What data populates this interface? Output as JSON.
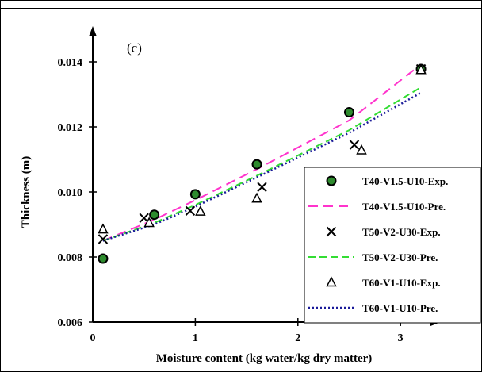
{
  "chart_data": {
    "type": "scatter",
    "panel_label": "(c)",
    "xlabel": "Moisture content (kg water/kg dry matter)",
    "ylabel": "Thickness (m)",
    "xlim": [
      0,
      3.3
    ],
    "ylim": [
      0.006,
      0.015
    ],
    "x_ticks": [
      {
        "value": 0,
        "label": "0"
      },
      {
        "value": 1,
        "label": "1"
      },
      {
        "value": 2,
        "label": "2"
      },
      {
        "value": 3,
        "label": "3"
      }
    ],
    "y_ticks": [
      {
        "value": 0.006,
        "label": "0.006"
      },
      {
        "value": 0.008,
        "label": "0.008"
      },
      {
        "value": 0.01,
        "label": "0.010"
      },
      {
        "value": 0.012,
        "label": "0.012"
      },
      {
        "value": 0.014,
        "label": "0.014"
      }
    ],
    "grid": false,
    "legend_position": "bottom-right",
    "series": [
      {
        "name": "T40-V1.5-U10-Exp.",
        "kind": "marker",
        "marker": "circle-filled",
        "color": "#2e8b2e",
        "edge": "#000000",
        "x": [
          0.1,
          0.6,
          1.0,
          1.6,
          2.5,
          3.2
        ],
        "y": [
          0.00795,
          0.0093,
          0.00993,
          0.01085,
          0.01245,
          0.01378
        ]
      },
      {
        "name": "T40-V1.5-U10-Pre.",
        "kind": "line",
        "dash": "long",
        "color": "#ff33cc",
        "x": [
          0.1,
          0.6,
          1.0,
          1.6,
          2.5,
          3.2
        ],
        "y": [
          0.0085,
          0.00915,
          0.00975,
          0.0107,
          0.0122,
          0.01392
        ]
      },
      {
        "name": "T50-V2-U30-Exp.",
        "kind": "marker",
        "marker": "x",
        "color": "#000000",
        "x": [
          0.1,
          0.5,
          0.95,
          1.65,
          2.55,
          3.2
        ],
        "y": [
          0.00855,
          0.0092,
          0.00942,
          0.01015,
          0.01145,
          0.01378
        ]
      },
      {
        "name": "T50-V2-U30-Pre.",
        "kind": "line",
        "dash": "medium",
        "color": "#33dd33",
        "x": [
          0.1,
          0.6,
          1.0,
          1.6,
          2.5,
          3.2
        ],
        "y": [
          0.0085,
          0.00905,
          0.0096,
          0.0105,
          0.0119,
          0.01322
        ]
      },
      {
        "name": "T60-V1-U10-Exp.",
        "kind": "marker",
        "marker": "triangle-open",
        "color": "#000000",
        "x": [
          0.1,
          0.55,
          1.05,
          1.6,
          2.62,
          3.2
        ],
        "y": [
          0.00885,
          0.00905,
          0.0094,
          0.0098,
          0.01128,
          0.01375
        ]
      },
      {
        "name": "T60-V1-U10-Pre.",
        "kind": "line",
        "dash": "dotted",
        "color": "#1a1a99",
        "x": [
          0.1,
          0.6,
          1.0,
          1.6,
          2.5,
          3.2
        ],
        "y": [
          0.0085,
          0.009,
          0.00955,
          0.01045,
          0.01182,
          0.01305
        ]
      }
    ]
  }
}
